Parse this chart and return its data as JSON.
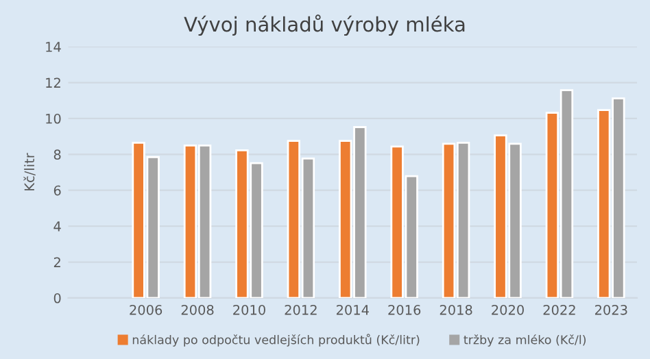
{
  "chart_data": {
    "type": "bar",
    "title": "Vývoj nákladů výroby mléka",
    "ylabel": "Kč/litr",
    "categories": [
      null,
      "2006",
      "2008",
      "2010",
      "2012",
      "2014",
      "2016",
      "2018",
      "2020",
      "2022",
      "2023"
    ],
    "series": [
      {
        "name": "náklady po odpočtu vedlejších produktů (Kč/litr)",
        "color": "#ed7d31",
        "values": [
          null,
          8.65,
          8.49,
          8.23,
          8.75,
          8.75,
          8.44,
          8.59,
          9.06,
          10.32,
          10.47
        ]
      },
      {
        "name": "tržby za mléko (Kč/l)",
        "color": "#a5a5a5",
        "values": [
          null,
          7.85,
          8.49,
          7.51,
          7.77,
          9.52,
          6.79,
          8.65,
          8.59,
          11.58,
          11.12
        ]
      }
    ],
    "ylim": [
      0,
      14
    ],
    "yticks": [
      0,
      2,
      4,
      6,
      8,
      10,
      12,
      14
    ],
    "grid": "y",
    "legend": "bottom"
  }
}
